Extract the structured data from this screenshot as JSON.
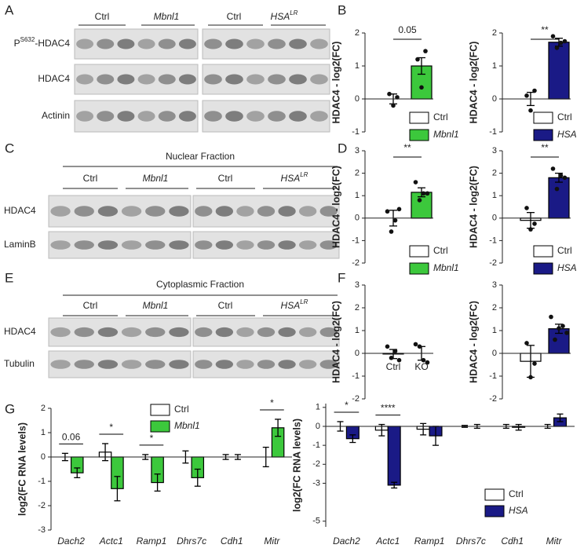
{
  "panel_labels": [
    "A",
    "B",
    "C",
    "D",
    "E",
    "F",
    "G"
  ],
  "blots": [
    {
      "groups": [
        "Ctrl",
        "Mbnl1",
        "Ctrl",
        {
          "text": "HSA",
          "sup": "LR"
        }
      ],
      "rows": [
        {
          "text": "P",
          "sup": "S632",
          "after": "-HDAC4"
        },
        "HDAC4",
        "Actinin"
      ]
    },
    {
      "title": "Nuclear Fraction",
      "groups": [
        "Ctrl",
        "Mbnl1",
        "Ctrl",
        {
          "text": "HSA",
          "sup": "LR"
        }
      ],
      "rows": [
        "HDAC4",
        "LaminB"
      ]
    },
    {
      "title": "Cytoplasmic Fraction",
      "groups": [
        "Ctrl",
        "Mbnl1",
        "Ctrl",
        {
          "text": "HSA",
          "sup": "LR"
        }
      ],
      "rows": [
        "HDAC4",
        "Tubulin"
      ]
    }
  ],
  "chart_data": [
    {
      "type": "bar",
      "ylabel": "HDAC4 - log2(FC)",
      "ylim": [
        -1,
        2
      ],
      "yticks": [
        -1,
        0,
        1,
        2
      ],
      "annotation": "0.05",
      "series": [
        {
          "name": "Ctrl",
          "color": "#ffffff",
          "values": [
            0
          ],
          "errors": [
            0.15
          ],
          "points": [
            [
              0.15,
              -0.2,
              0.05
            ]
          ]
        },
        {
          "name": "Mbnl1",
          "color": "#3cc83c",
          "values": [
            1.0
          ],
          "errors": [
            0.25
          ],
          "points": [
            [
              1.2,
              0.35,
              1.45
            ]
          ]
        }
      ]
    },
    {
      "type": "bar",
      "ylabel": "HDAC4 - log2(FC)",
      "ylim": [
        -1,
        2
      ],
      "yticks": [
        -1,
        0,
        1,
        2
      ],
      "annotation": "**",
      "series": [
        {
          "name": "Ctrl",
          "color": "#ffffff",
          "values": [
            0
          ],
          "errors": [
            0.2
          ],
          "points": [
            [
              0.1,
              -0.35,
              0.25
            ]
          ]
        },
        {
          "name": "HSA",
          "color": "#1a1a86",
          "values": [
            1.72
          ],
          "errors": [
            0.12
          ],
          "points": [
            [
              1.9,
              1.55,
              1.7,
              1.75
            ]
          ]
        }
      ]
    },
    {
      "type": "bar",
      "ylabel": "HDAC4 - log2(FC)",
      "ylim": [
        -2,
        3
      ],
      "yticks": [
        -2,
        -1,
        0,
        1,
        2,
        3
      ],
      "annotation": "**",
      "series": [
        {
          "name": "Ctrl",
          "color": "#ffffff",
          "values": [
            0
          ],
          "errors": [
            0.35
          ],
          "points": [
            [
              0.3,
              -0.6,
              -0.1,
              0.4
            ]
          ]
        },
        {
          "name": "Mbnl1",
          "color": "#3cc83c",
          "values": [
            1.15
          ],
          "errors": [
            0.2
          ],
          "points": [
            [
              1.6,
              0.8,
              1.1,
              1.1
            ]
          ]
        }
      ]
    },
    {
      "type": "bar",
      "ylabel": "HDAC4 - log2(FC)",
      "ylim": [
        -2,
        3
      ],
      "yticks": [
        -2,
        -1,
        0,
        1,
        2,
        3
      ],
      "annotation": "**",
      "series": [
        {
          "name": "Ctrl",
          "color": "#ffffff",
          "values": [
            -0.1
          ],
          "errors": [
            0.35
          ],
          "points": [
            [
              0.45,
              -0.5,
              -0.25
            ]
          ]
        },
        {
          "name": "HSA",
          "color": "#1a1a86",
          "values": [
            1.8
          ],
          "errors": [
            0.2
          ],
          "points": [
            [
              2.2,
              1.3,
              1.9,
              1.8
            ]
          ]
        }
      ]
    },
    {
      "type": "bar",
      "ylabel": "HDAC4 - log2(FC)",
      "ylim": [
        -2,
        3
      ],
      "yticks": [
        -2,
        -1,
        0,
        1,
        2,
        3
      ],
      "categories": [
        "Ctrl",
        "KO"
      ],
      "values": [
        -0.03,
        0
      ],
      "errors": [
        0.2,
        0.3
      ],
      "colors": [
        "#ffffff",
        "#ffffff"
      ],
      "points": [
        [
          0.3,
          -0.2,
          0.1,
          -0.3
        ],
        [
          0.4,
          0.3,
          -0.3,
          -0.4
        ]
      ]
    },
    {
      "type": "bar",
      "ylabel": "HDAC4 - log2(FC)",
      "ylim": [
        -2,
        3
      ],
      "yticks": [
        -2,
        -1,
        0,
        1,
        2,
        3
      ],
      "categories": [
        null,
        null
      ],
      "values": [
        -0.35,
        1.08
      ],
      "errors": [
        0.7,
        0.2
      ],
      "colors": [
        "#ffffff",
        "#1a1a86"
      ],
      "points": [
        [
          0.45,
          -1.05,
          -0.45
        ],
        [
          1.6,
          0.6,
          1.1,
          1.2,
          0.9
        ]
      ]
    },
    {
      "type": "grouped-bar",
      "ylabel": "log2(FC RNA levels)",
      "ylim": [
        -3,
        2
      ],
      "yticks": [
        -3,
        -2,
        -1,
        0,
        1,
        2
      ],
      "legend": "upper center",
      "categories": [
        "Dach2",
        "Actc1",
        "Ramp1",
        "Dhrs7c",
        "Cdh1",
        "Mitr"
      ],
      "annotations": [
        "0.06",
        "*",
        "*",
        null,
        null,
        "*"
      ],
      "series": [
        {
          "name": "Ctrl",
          "color": "#ffffff",
          "values": [
            0,
            0.2,
            0,
            0,
            0,
            0
          ],
          "errors": [
            0.15,
            0.35,
            0.1,
            0.25,
            0.1,
            0.4
          ]
        },
        {
          "name": "Mbnl1",
          "color": "#3cc83c",
          "values": [
            -0.65,
            -1.3,
            -1.05,
            -0.85,
            0,
            1.2
          ],
          "errors": [
            0.2,
            0.5,
            0.35,
            0.35,
            0.1,
            0.35
          ]
        }
      ]
    },
    {
      "type": "grouped-bar",
      "ylabel": "log2(FC RNA levels)",
      "ylim": [
        -5.3,
        1.2
      ],
      "yticks": [
        -5,
        -3,
        -2,
        -1,
        0,
        1
      ],
      "legend": "lower right",
      "categories": [
        "Dach2",
        "Actc1",
        "Ramp1",
        "Dhrs7c",
        "Cdh1",
        "Mitr"
      ],
      "annotations": [
        "*",
        "****",
        null,
        null,
        null,
        null
      ],
      "series": [
        {
          "name": "Ctrl",
          "color": "#ffffff",
          "values": [
            0,
            -0.2,
            -0.15,
            0,
            0,
            0
          ],
          "errors": [
            0.25,
            0.3,
            0.3,
            0.05,
            0.1,
            0.1
          ]
        },
        {
          "name": "HSA",
          "color": "#1a1a86",
          "values": [
            -0.65,
            -3.1,
            -0.5,
            0,
            -0.05,
            0.45
          ],
          "errors": [
            0.2,
            0.15,
            0.5,
            0.1,
            0.15,
            0.2
          ]
        }
      ]
    }
  ]
}
